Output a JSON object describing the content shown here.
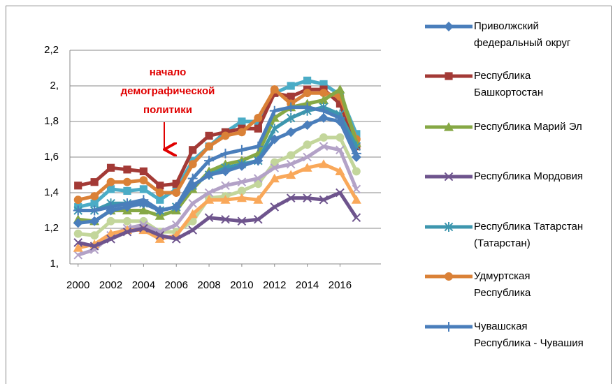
{
  "chart_data": {
    "type": "line",
    "annotation": "начало демографической политики",
    "x": [
      2000,
      2001,
      2002,
      2003,
      2004,
      2005,
      2006,
      2007,
      2008,
      2009,
      2010,
      2011,
      2012,
      2013,
      2014,
      2015,
      2016,
      2017
    ],
    "xlim": [
      1999.5,
      2018.5
    ],
    "xticks": [
      2000,
      2002,
      2004,
      2006,
      2008,
      2010,
      2012,
      2014,
      2016
    ],
    "ylim": [
      1,
      2.2
    ],
    "yticks": [
      {
        "value": 1,
        "label": "1,"
      },
      {
        "value": 1.2,
        "label": "1,2"
      },
      {
        "value": 1.4,
        "label": "1,4"
      },
      {
        "value": 1.6,
        "label": "1,6"
      },
      {
        "value": 1.8,
        "label": "1,8"
      },
      {
        "value": 2,
        "label": "2,"
      },
      {
        "value": 2.2,
        "label": "2,2"
      }
    ],
    "grid": true,
    "series": [
      {
        "name": "Приволжский федеральный округ",
        "color": "#4a7ebb",
        "marker": "diamond",
        "values": [
          1.23,
          1.24,
          1.3,
          1.32,
          1.34,
          1.3,
          1.32,
          1.44,
          1.5,
          1.52,
          1.55,
          1.58,
          1.7,
          1.74,
          1.78,
          1.82,
          1.8,
          1.6
        ]
      },
      {
        "name": "Республика Башкортостан",
        "color": "#a33a36",
        "marker": "square",
        "values": [
          1.44,
          1.46,
          1.54,
          1.53,
          1.52,
          1.44,
          1.45,
          1.64,
          1.72,
          1.74,
          1.76,
          1.76,
          1.96,
          1.94,
          1.98,
          1.98,
          1.9,
          1.66
        ]
      },
      {
        "name": "Республика Марий Эл",
        "color": "#86a845",
        "marker": "triangle",
        "values": [
          1.25,
          1.24,
          1.3,
          1.3,
          1.3,
          1.27,
          1.3,
          1.42,
          1.52,
          1.56,
          1.58,
          1.62,
          1.82,
          1.88,
          1.9,
          1.92,
          1.98,
          1.68
        ]
      },
      {
        "name": "Республика Мордовия",
        "color": "#6e548d",
        "marker": "x",
        "values": [
          1.12,
          1.1,
          1.14,
          1.18,
          1.2,
          1.16,
          1.14,
          1.19,
          1.26,
          1.25,
          1.24,
          1.25,
          1.32,
          1.37,
          1.37,
          1.36,
          1.4,
          1.26
        ]
      },
      {
        "name": "Республика Татарстан (Татарстан)",
        "color": "#3d96ae",
        "marker": "asterisk",
        "values": [
          1.3,
          1.3,
          1.34,
          1.34,
          1.34,
          1.3,
          1.32,
          1.44,
          1.5,
          1.54,
          1.56,
          1.58,
          1.76,
          1.82,
          1.86,
          1.88,
          1.84,
          1.66
        ]
      },
      {
        "name": "Удмуртская Республика",
        "color": "#da8137",
        "marker": "circle",
        "values": [
          1.36,
          1.38,
          1.46,
          1.46,
          1.47,
          1.4,
          1.4,
          1.56,
          1.66,
          1.72,
          1.74,
          1.82,
          1.98,
          1.9,
          1.96,
          1.96,
          1.94,
          1.7
        ]
      },
      {
        "name": "Чувашская Республика - Чувашия",
        "color": "#4a7ebb",
        "marker": "plus",
        "values": [
          1.3,
          1.3,
          1.32,
          1.34,
          1.36,
          1.3,
          1.32,
          1.48,
          1.58,
          1.62,
          1.64,
          1.66,
          1.86,
          1.88,
          1.88,
          1.86,
          1.82,
          1.62
        ]
      },
      {
        "color": "#4bacc6",
        "marker": "square",
        "values": [
          1.32,
          1.34,
          1.42,
          1.41,
          1.42,
          1.36,
          1.42,
          1.58,
          1.66,
          1.74,
          1.8,
          1.8,
          1.96,
          2.0,
          2.03,
          2.01,
          1.95,
          1.73
        ]
      },
      {
        "color": "#c3d69b",
        "marker": "circle",
        "values": [
          1.17,
          1.16,
          1.24,
          1.24,
          1.24,
          1.18,
          1.18,
          1.24,
          1.37,
          1.38,
          1.41,
          1.45,
          1.57,
          1.61,
          1.67,
          1.71,
          1.71,
          1.52
        ]
      },
      {
        "color": "#f9a85a",
        "marker": "triangle",
        "values": [
          1.09,
          1.11,
          1.17,
          1.19,
          1.19,
          1.14,
          1.16,
          1.28,
          1.36,
          1.36,
          1.37,
          1.36,
          1.48,
          1.5,
          1.54,
          1.56,
          1.52,
          1.36
        ]
      },
      {
        "color": "#b3a2c7",
        "marker": "x",
        "values": [
          1.05,
          1.08,
          1.16,
          1.2,
          1.22,
          1.18,
          1.22,
          1.34,
          1.4,
          1.44,
          1.46,
          1.48,
          1.54,
          1.56,
          1.6,
          1.66,
          1.64,
          1.42
        ]
      }
    ]
  }
}
